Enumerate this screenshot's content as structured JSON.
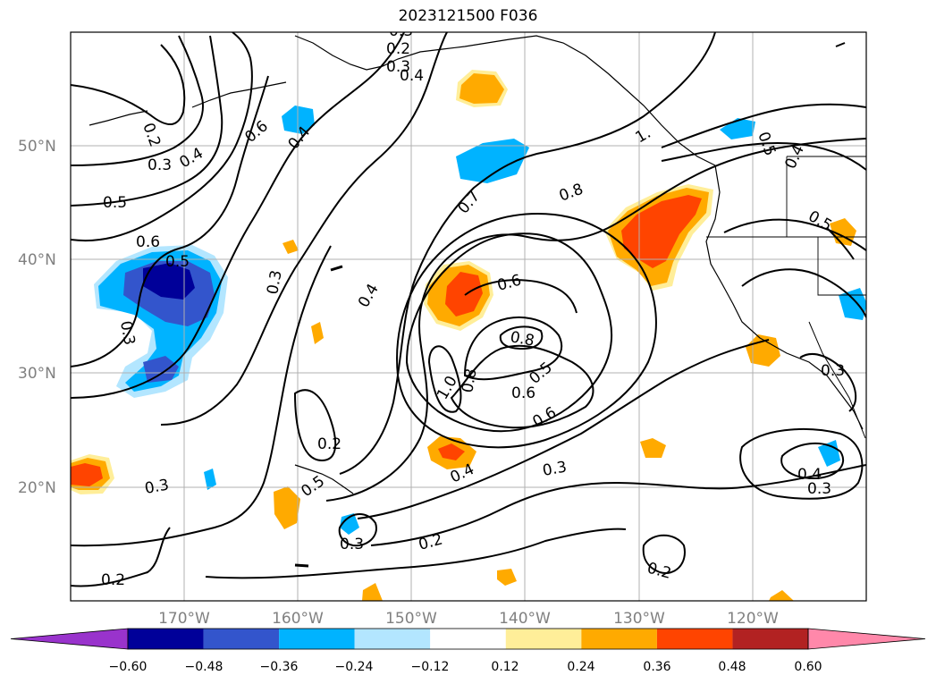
{
  "title": "2023121500 F036",
  "map": {
    "lat_labels": [
      "50°N",
      "40°N",
      "30°N",
      "20°N"
    ],
    "lon_labels": [
      "170°W",
      "160°W",
      "150°W",
      "140°W",
      "130°W",
      "120°W"
    ],
    "grid": true,
    "contour_color": "#000000",
    "coastline_color": "#000000",
    "contour_labels": [
      "0.2",
      "0.3",
      "0.4",
      "0.2",
      "0.3",
      "0.5",
      "0.6",
      "0.5",
      "0.3",
      "0.6",
      "0.4",
      "0.3",
      "0.4",
      "0.7",
      "0.8",
      "0.6",
      "0.8",
      "1.0",
      "0.8",
      "0.6",
      "0.5",
      "0.6",
      "0.2",
      "0.5",
      "0.4",
      "0.3",
      "0.2",
      "0.3",
      "0.2",
      "0.3",
      "0.2",
      "1.",
      "0.5",
      "0.4",
      "0.5",
      "0.3",
      "0.4",
      "0.3",
      "0.4",
      "0.3"
    ]
  },
  "colorbar": {
    "tick_labels": [
      "−0.60",
      "−0.48",
      "−0.36",
      "−0.24",
      "−0.12",
      "0.12",
      "0.24",
      "0.36",
      "0.48",
      "0.60"
    ],
    "colors": [
      "#9933cc",
      "#000099",
      "#3355cc",
      "#00b3ff",
      "#b3e6ff",
      "#ffffff",
      "#ffee99",
      "#ffaa00",
      "#ff4400",
      "#b22222",
      "#ff88aa"
    ]
  }
}
